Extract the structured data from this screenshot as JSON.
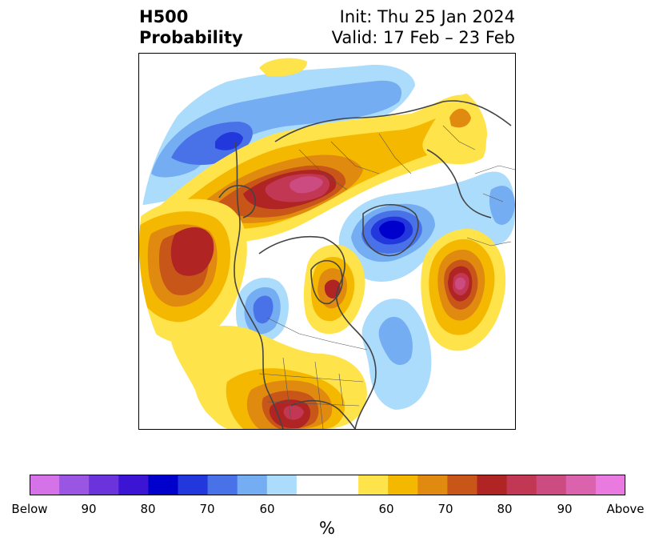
{
  "title": {
    "left_line1": "H500",
    "left_line2": "Probability",
    "right_line1": "Init: Thu 25 Jan 2024",
    "right_line2": "Valid: 17 Feb – 23 Feb"
  },
  "colorbar": {
    "unit": "%",
    "ticks": [
      {
        "label": "Below",
        "name": "tick-below"
      },
      {
        "label": "90",
        "name": "tick-below-90"
      },
      {
        "label": "80",
        "name": "tick-below-80"
      },
      {
        "label": "70",
        "name": "tick-below-70"
      },
      {
        "label": "60",
        "name": "tick-below-60"
      },
      {
        "label": "60",
        "name": "tick-above-60"
      },
      {
        "label": "70",
        "name": "tick-above-70"
      },
      {
        "label": "80",
        "name": "tick-above-80"
      },
      {
        "label": "90",
        "name": "tick-above-90"
      },
      {
        "label": "Above",
        "name": "tick-above"
      }
    ],
    "colors": [
      "#d672e8",
      "#9a55e2",
      "#6b33db",
      "#3b14d4",
      "#0000cd",
      "#2238dc",
      "#4a72e8",
      "#74adf1",
      "#acdcfc",
      "#ffffff",
      "#ffe34a",
      "#f5b800",
      "#e08a0f",
      "#c85618",
      "#b02424",
      "#c23854",
      "#cc4c82",
      "#db62ac",
      "#e87ae0"
    ]
  },
  "map": {
    "palette": {
      "blue60": "#acdcfc",
      "blue65": "#74adf1",
      "blue70": "#4a72e8",
      "blue75": "#2238dc",
      "blue85": "#0000cd",
      "yel60": "#ffe34a",
      "yel65": "#f5b800",
      "yel70": "#e08a0f",
      "yel75": "#c85618",
      "yel80": "#b02424",
      "yel85": "#c23854",
      "yel90": "#cc4c82",
      "coast": "#444444"
    }
  }
}
